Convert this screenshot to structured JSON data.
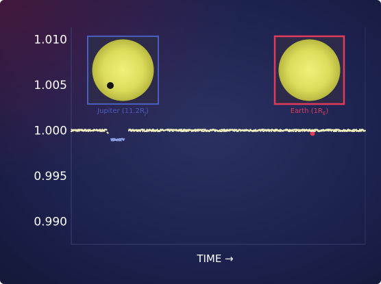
{
  "chart_data": {
    "type": "scatter",
    "title": "",
    "xlabel": "TIME →",
    "ylabel": "",
    "ylim": [
      0.9875,
      1.0113
    ],
    "xlim": [
      0,
      100
    ],
    "grid": false,
    "y_ticks": [
      "1.010",
      "1.005",
      "1.000",
      "0.995",
      "0.990"
    ],
    "y_tick_values": [
      1.01,
      1.005,
      1.0,
      0.995,
      0.99
    ],
    "series": [
      {
        "baseline": 1.0,
        "values_x": [
          0,
          12,
          13.5,
          15,
          18,
          19.5,
          100
        ],
        "values_y": [
          1.0,
          1.0,
          0.99898,
          0.99898,
          0.99898,
          1.0,
          1.0
        ]
      }
    ],
    "insets": [
      {
        "label": "Jupiter (11.2R",
        "sub": "J",
        "label_end": ")",
        "color": "#4a5ec0",
        "planet_color": "#141414"
      },
      {
        "label": "Earth (1R",
        "sub": "E",
        "label_end": ")",
        "color": "#e33a5a",
        "planet_color": "#e33a5a"
      }
    ],
    "colors": {
      "data": "#f3f1c0",
      "jupiter": "#4a5ec0",
      "earth": "#e33a5a",
      "sun": "#e8e86a"
    }
  }
}
